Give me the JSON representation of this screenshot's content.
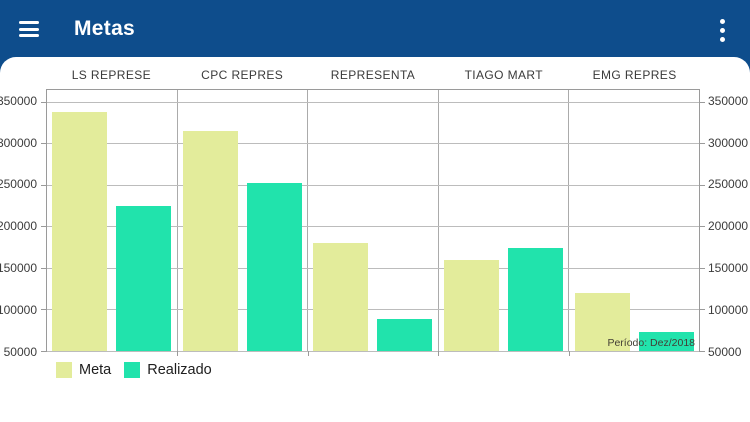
{
  "header": {
    "title": "Metas",
    "menu_icon": "hamburger-icon",
    "overflow_icon": "kebab-menu-icon"
  },
  "colors": {
    "app_bar": "#0e4d8c",
    "meta_bar": "#e3ec9b",
    "realizado_bar": "#21e3ac",
    "gridline": "#bcbcbc",
    "plot_border": "#9a9a9a",
    "axis_text": "#3c3c3c"
  },
  "chart_data": {
    "type": "bar",
    "title": "Metas",
    "categories": [
      "LS REPRESE",
      "CPC REPRES",
      "REPRESENTA",
      "TIAGO MART",
      "EMG REPRES"
    ],
    "series": [
      {
        "name": "Meta",
        "color": "#e3ec9b",
        "values": [
          338000,
          315000,
          180000,
          159000,
          120000
        ]
      },
      {
        "name": "Realizado",
        "color": "#21e3ac",
        "values": [
          225000,
          252000,
          88000,
          174000,
          73000
        ]
      }
    ],
    "ylim": [
      50000,
      364000
    ],
    "yticks": [
      350000,
      300000,
      250000,
      200000,
      150000,
      100000,
      50000
    ],
    "grid": true,
    "legend_position": "bottom-left",
    "annotation": "Período: Dez/2018"
  }
}
